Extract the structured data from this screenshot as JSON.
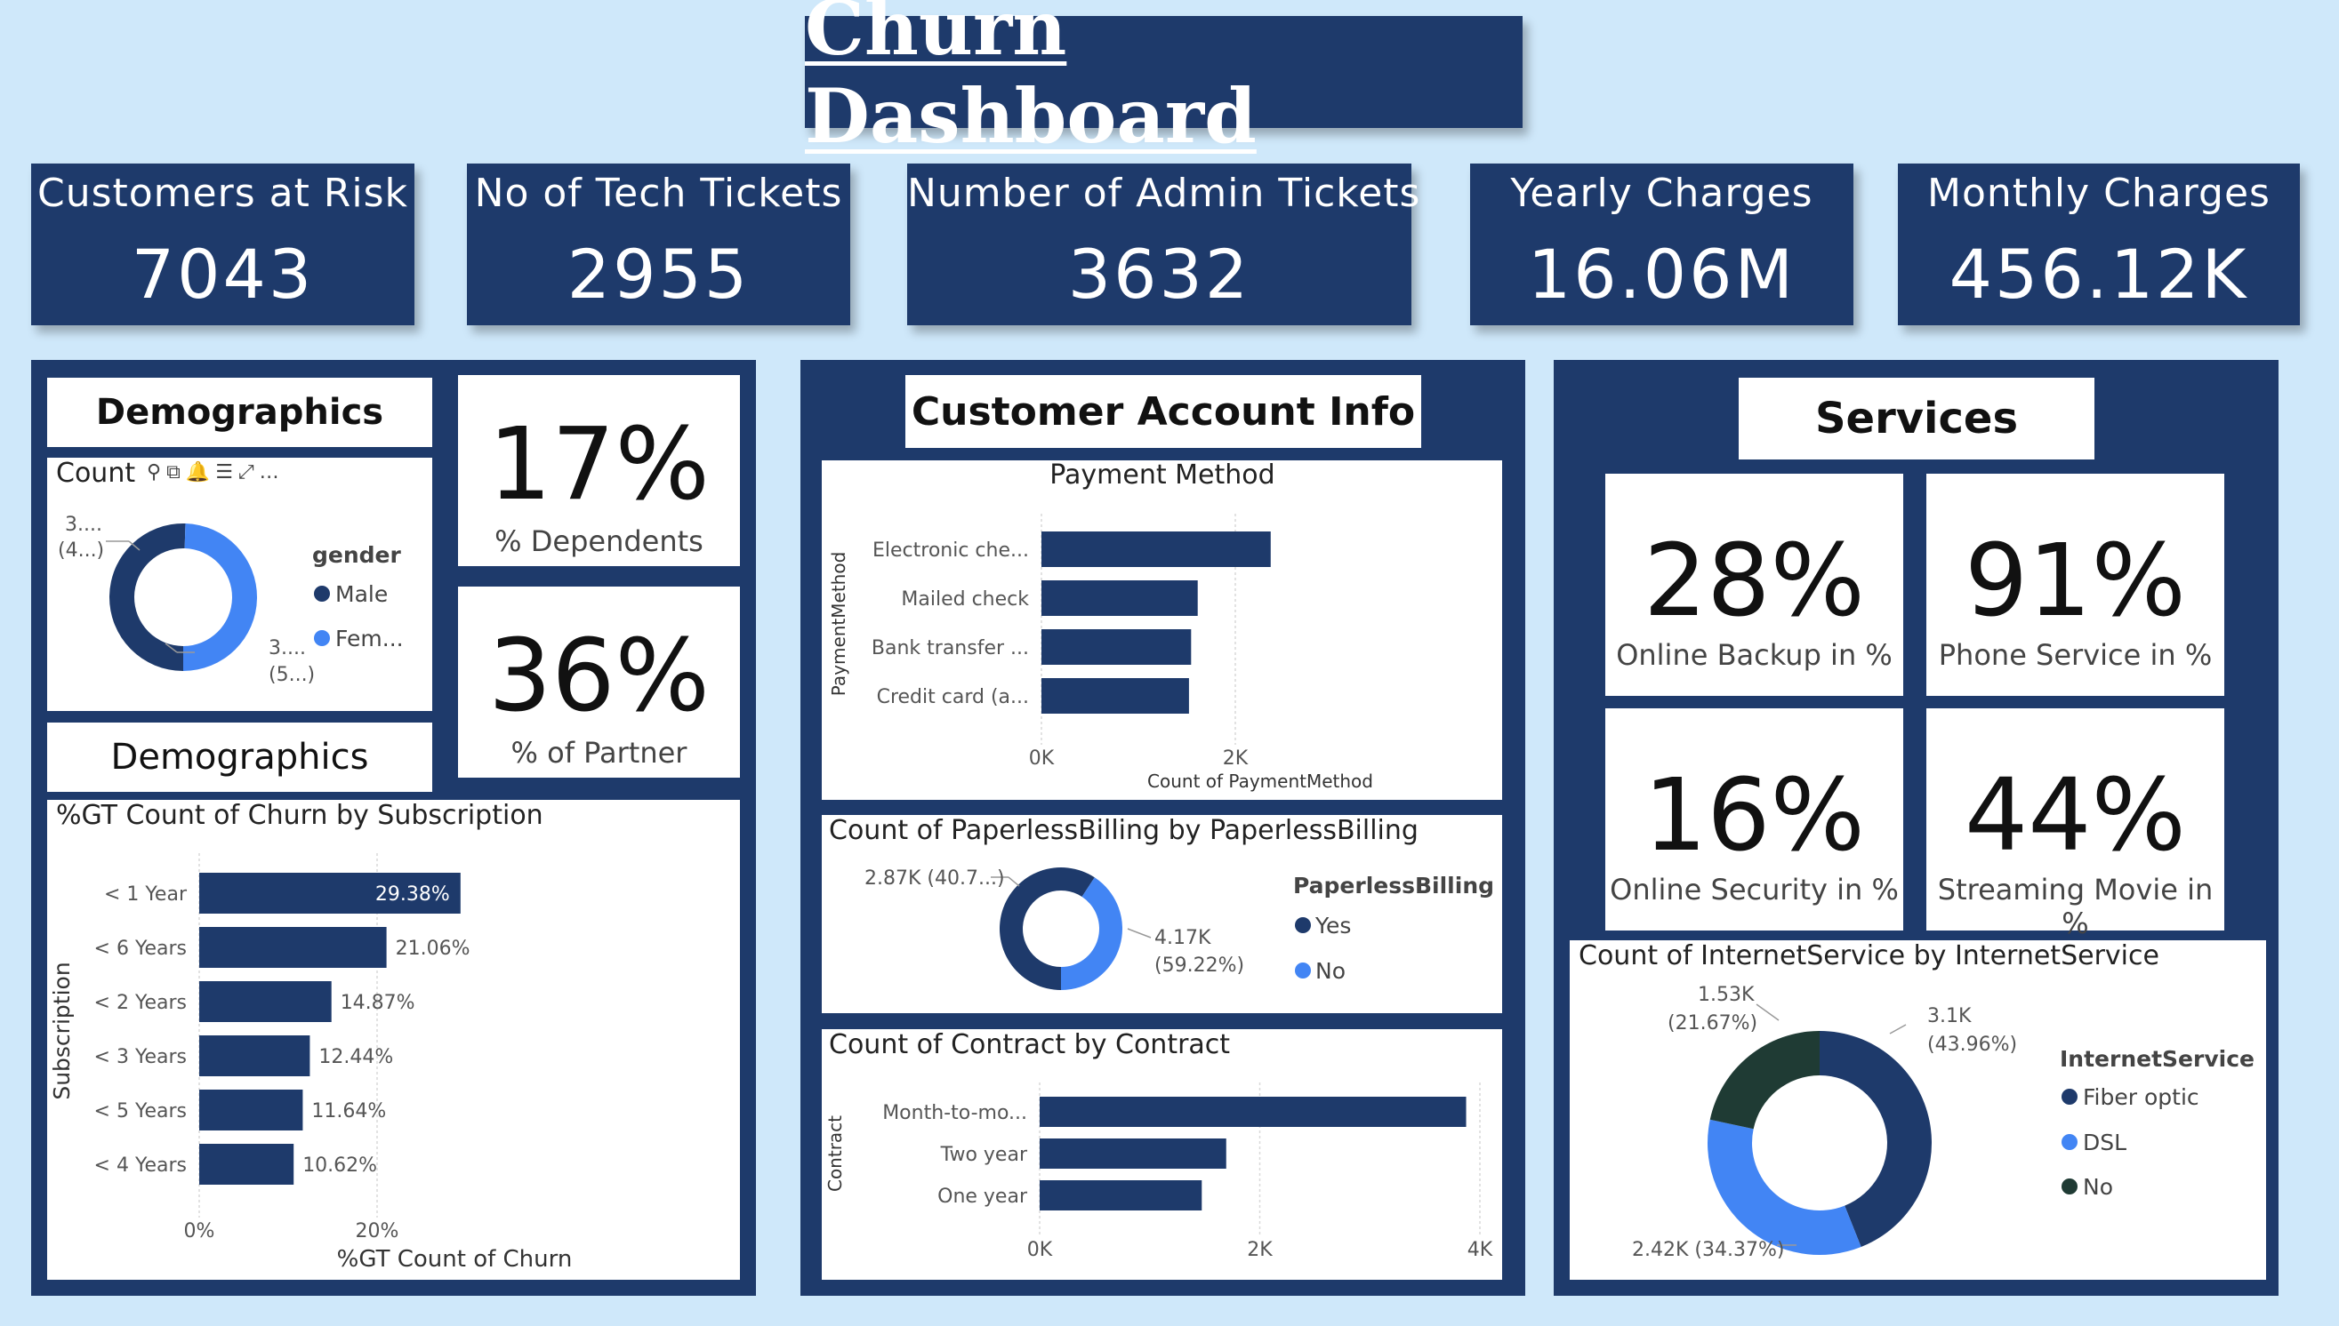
{
  "title": "Churn Dashboard",
  "kpis": [
    {
      "label": "Customers at Risk",
      "value": "7043"
    },
    {
      "label": "No of Tech Tickets",
      "value": "2955"
    },
    {
      "label": "Number of Admin Tickets",
      "value": "3632"
    },
    {
      "label": "Yearly Charges",
      "value": "16.06M"
    },
    {
      "label": "Monthly Charges",
      "value": "456.12K"
    }
  ],
  "demographics": {
    "header": "Demographics",
    "section_label": "Demographics",
    "dependents": {
      "value": "17%",
      "label": "% Dependents"
    },
    "partner": {
      "value": "36%",
      "label": "% of Partner"
    }
  },
  "account": {
    "header": "Customer Account Info"
  },
  "services": {
    "header": "Services",
    "cards": [
      {
        "value": "28%",
        "label": "Online Backup in %"
      },
      {
        "value": "91%",
        "label": "Phone Service in %"
      },
      {
        "value": "16%",
        "label": "Online Security in %"
      },
      {
        "value": "44%",
        "label": "Streaming Movie in %"
      }
    ]
  },
  "colors": {
    "navy": "#1e3a6b",
    "blue": "#4285f4",
    "dark_green": "#1f3b34",
    "bg": "#cfe8fa"
  },
  "chart_data": [
    {
      "id": "gender",
      "type": "pie",
      "title": "Count",
      "legend_title": "gender",
      "slices": [
        {
          "name": "Male",
          "legend": "Male",
          "value": 3555,
          "label_top": "3....",
          "label_bottom": "(5...)",
          "color": "#1e3a6b"
        },
        {
          "name": "Female",
          "legend": "Fem...",
          "value": 3488,
          "label_top": "3....",
          "label_bottom": "(4...)",
          "color": "#4285f4"
        }
      ]
    },
    {
      "id": "subscription",
      "type": "bar",
      "title": "%GT Count of Churn by Subscription",
      "xlabel": "%GT Count of Churn",
      "ylabel": "Subscription",
      "categories": [
        "< 1 Year",
        "< 6 Years",
        "< 2 Years",
        "< 3 Years",
        "< 5 Years",
        "< 4 Years"
      ],
      "values": [
        29.38,
        21.06,
        14.87,
        12.44,
        11.64,
        10.62
      ],
      "value_labels": [
        "29.38%",
        "21.06%",
        "14.87%",
        "12.44%",
        "11.64%",
        "10.62%"
      ],
      "xlim": [
        0,
        30
      ],
      "xticks": [
        {
          "v": 0,
          "label": "0%"
        },
        {
          "v": 20,
          "label": "20%"
        }
      ]
    },
    {
      "id": "payment",
      "type": "bar",
      "title": "Payment Method",
      "xlabel": "Count of PaymentMethod",
      "ylabel": "PaymentMethod",
      "categories": [
        "Electronic che...",
        "Mailed check",
        "Bank transfer ...",
        "Credit card (a..."
      ],
      "values": [
        2365,
        1612,
        1544,
        1522
      ],
      "xlim": [
        0,
        3000
      ],
      "xticks": [
        {
          "v": 0,
          "label": "0K"
        },
        {
          "v": 2000,
          "label": "2K"
        }
      ]
    },
    {
      "id": "paperless",
      "type": "pie",
      "title": "Count of PaperlessBilling by PaperlessBilling",
      "legend_title": "PaperlessBilling",
      "slices": [
        {
          "name": "Yes",
          "legend": "Yes",
          "value": 4171,
          "label_top": "4.17K",
          "label_bottom": "(59.22%)",
          "color": "#1e3a6b"
        },
        {
          "name": "No",
          "legend": "No",
          "value": 2872,
          "label_top": "2.87K (40.7...)",
          "label_bottom": "",
          "color": "#4285f4"
        }
      ]
    },
    {
      "id": "contract",
      "type": "bar",
      "title": "Count of Contract by Contract",
      "ylabel": "Contract",
      "categories": [
        "Month-to-mo...",
        "Two year",
        "One year"
      ],
      "values": [
        3875,
        1695,
        1473
      ],
      "xlim": [
        0,
        4000
      ],
      "xticks": [
        {
          "v": 0,
          "label": "0K"
        },
        {
          "v": 2000,
          "label": "2K"
        },
        {
          "v": 4000,
          "label": "4K"
        }
      ]
    },
    {
      "id": "internet",
      "type": "pie",
      "title": "Count of InternetService by InternetService",
      "legend_title": "InternetService",
      "slices": [
        {
          "name": "Fiber optic",
          "legend": "Fiber optic",
          "value": 3096,
          "label_top": "3.1K",
          "label_bottom": "(43.96%)",
          "color": "#1e3a6b"
        },
        {
          "name": "DSL",
          "legend": "DSL",
          "value": 2421,
          "label_top": "2.42K (34.37%)",
          "label_bottom": "",
          "color": "#4285f4"
        },
        {
          "name": "No",
          "legend": "No",
          "value": 1526,
          "label_top": "1.53K",
          "label_bottom": "(21.67%)",
          "color": "#1f3b34"
        }
      ]
    }
  ]
}
